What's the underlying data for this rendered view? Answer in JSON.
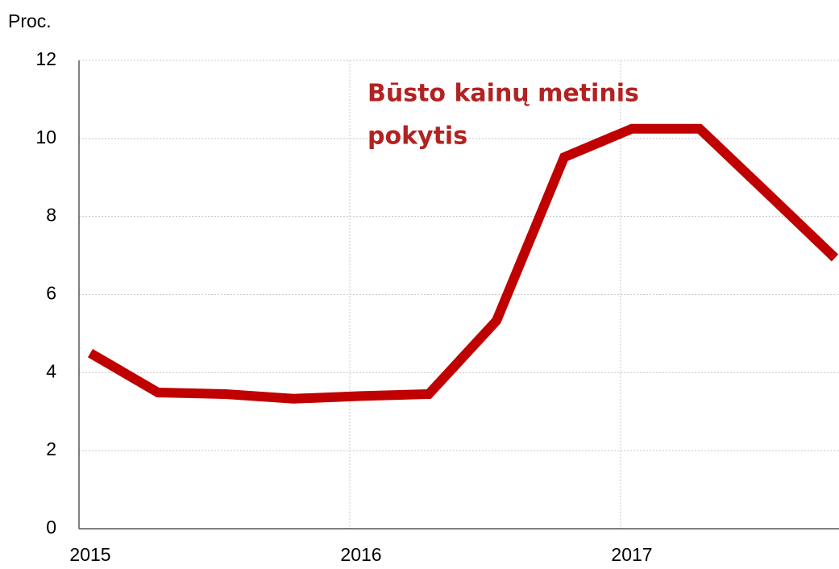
{
  "chart_data": {
    "type": "line",
    "y_label": "Proc.",
    "annotation": [
      "Būsto kainų metinis",
      "pokytis"
    ],
    "categories": [
      "2015",
      null,
      null,
      null,
      "2016",
      null,
      null,
      null,
      "2017",
      null,
      null,
      null
    ],
    "series": [
      {
        "name": "Būsto kainų metinis pokytis",
        "color": "#c00000",
        "values": [
          4.5,
          3.49,
          3.45,
          3.33,
          3.4,
          3.45,
          5.33,
          9.52,
          10.25,
          10.25,
          8.6,
          6.94
        ]
      }
    ],
    "ylim": [
      0,
      12
    ],
    "yticks": [
      0,
      2,
      4,
      6,
      8,
      10,
      12
    ],
    "grid": true
  }
}
